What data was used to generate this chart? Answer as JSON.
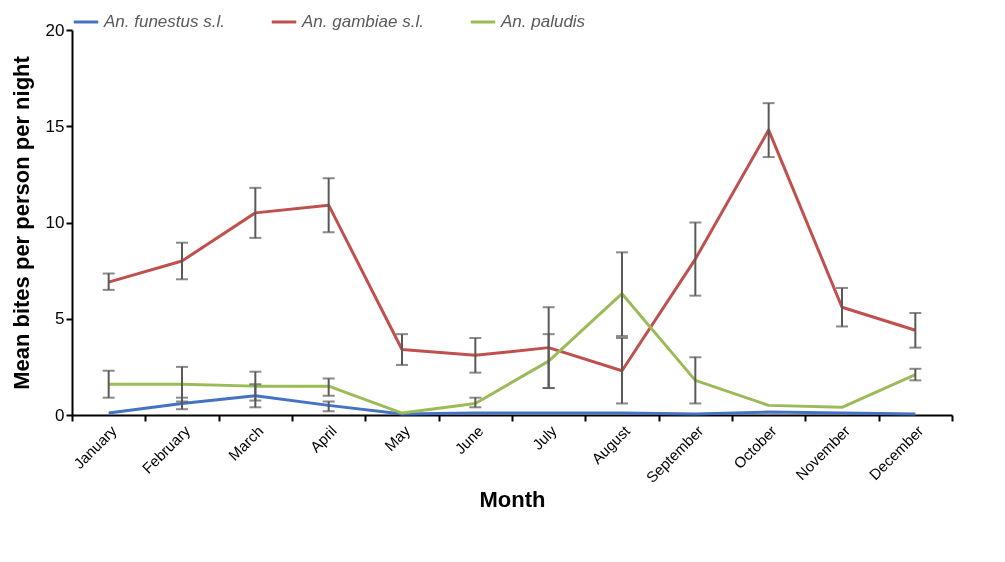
{
  "chart_data": {
    "type": "line",
    "xlabel": "Month",
    "ylabel": "Mean bites per person per night",
    "categories": [
      "January",
      "February",
      "March",
      "April",
      "May",
      "June",
      "July",
      "August",
      "September",
      "October",
      "November",
      "December"
    ],
    "series": [
      {
        "name": "An. funestus s.l.",
        "color": "#4472c4",
        "values": [
          0.1,
          0.6,
          1.0,
          0.5,
          0.05,
          0.1,
          0.1,
          0.1,
          0.05,
          0.15,
          0.1,
          0.05
        ],
        "errors": [
          null,
          [
            0.3,
            0.9
          ],
          [
            0.4,
            1.6
          ],
          [
            0.2,
            0.7
          ],
          null,
          null,
          null,
          null,
          null,
          null,
          null,
          null
        ]
      },
      {
        "name": "An. gambiae s.l.",
        "color": "#c0504d",
        "values": [
          6.9,
          8.0,
          10.5,
          10.9,
          3.4,
          3.1,
          3.5,
          2.3,
          8.1,
          14.8,
          5.6,
          4.4
        ],
        "errors": [
          [
            6.5,
            7.35
          ],
          [
            7.05,
            8.95
          ],
          [
            9.2,
            11.8
          ],
          [
            9.5,
            12.3
          ],
          [
            2.6,
            4.2
          ],
          [
            2.2,
            4.0
          ],
          [
            1.4,
            5.6
          ],
          [
            0.6,
            4.0
          ],
          [
            6.2,
            10.0
          ],
          [
            13.4,
            16.2
          ],
          [
            4.6,
            6.6
          ],
          [
            3.5,
            5.3
          ]
        ]
      },
      {
        "name": "An. paludis",
        "color": "#9bbb59",
        "values": [
          1.6,
          1.6,
          1.5,
          1.5,
          0.1,
          0.6,
          2.8,
          6.3,
          1.8,
          0.5,
          0.4,
          2.1
        ],
        "errors": [
          [
            0.9,
            2.3
          ],
          [
            0.7,
            2.5
          ],
          [
            0.75,
            2.25
          ],
          [
            1.0,
            1.9
          ],
          null,
          [
            0.4,
            0.9
          ],
          [
            1.4,
            4.2
          ],
          [
            4.1,
            8.45
          ],
          [
            0.6,
            3.0
          ],
          null,
          null,
          [
            1.8,
            2.4
          ]
        ]
      }
    ],
    "ylim": [
      0,
      20
    ],
    "yticks": [
      0,
      5,
      10,
      15,
      20
    ],
    "grid": false,
    "legend": "top",
    "line_style": "solid",
    "marker": "none"
  }
}
